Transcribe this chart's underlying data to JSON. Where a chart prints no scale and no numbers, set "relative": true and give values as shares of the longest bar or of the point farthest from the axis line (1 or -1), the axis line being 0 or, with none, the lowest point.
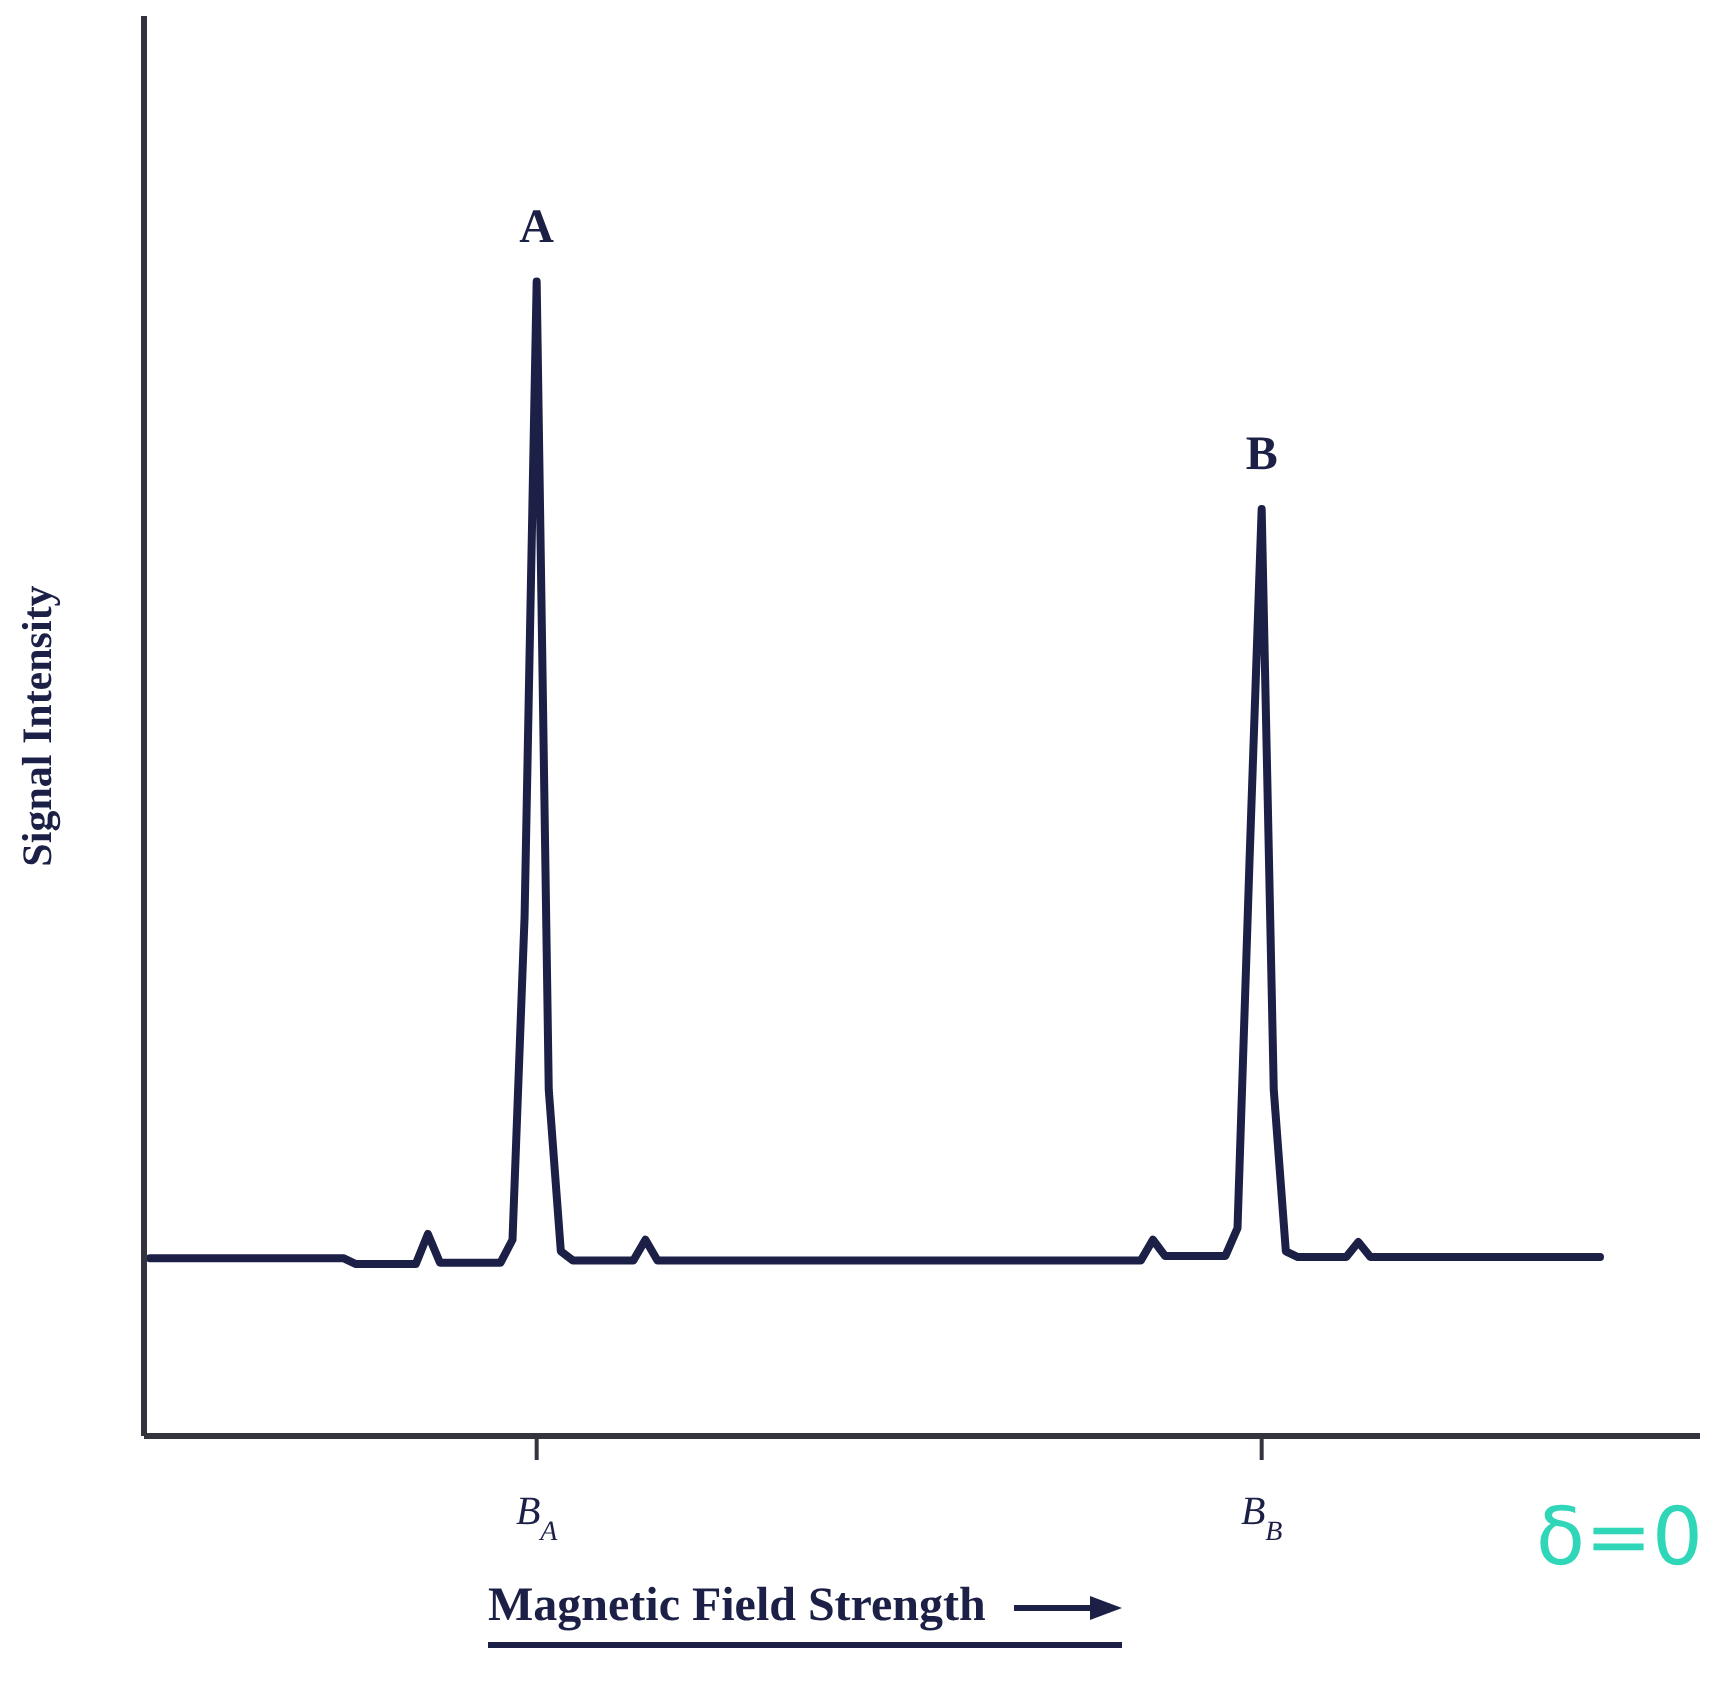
{
  "chart_data": {
    "type": "line",
    "relative": true,
    "xlabel": "Magnetic Field Strength",
    "ylabel": "Signal Intensity",
    "categories": [
      null,
      null,
      null,
      null,
      null,
      null,
      null,
      null,
      null,
      null,
      null,
      null,
      null,
      null,
      null,
      null,
      null,
      null,
      null,
      null,
      null,
      null,
      null,
      null,
      null,
      null,
      null,
      null,
      null,
      null,
      null,
      null,
      "B$_{A}$",
      null,
      null,
      null,
      null,
      null,
      null,
      null,
      null,
      null,
      null,
      null,
      null,
      null,
      null,
      null,
      null,
      null,
      null,
      null,
      null,
      null,
      null,
      null,
      null,
      null,
      null,
      null,
      null,
      null,
      null,
      null,
      null,
      null,
      null,
      null,
      null,
      null,
      null,
      null,
      null,
      null,
      null,
      null,
      null,
      null,
      null,
      null,
      null,
      null,
      null,
      null,
      null,
      null,
      null,
      null,
      null,
      null,
      null,
      null,
      "B$_{B}$",
      null,
      null,
      null,
      null,
      null,
      null,
      null,
      null,
      null,
      null,
      null,
      null,
      null,
      null,
      null,
      null,
      null,
      null,
      null,
      null,
      null,
      null,
      null,
      null,
      null,
      null,
      null,
      null
    ],
    "series": [
      {
        "color": "#1c2046",
        "values": [
          0.154,
          0.154,
          0.154,
          0.154,
          0.154,
          0.154,
          0.154,
          0.154,
          0.154,
          0.154,
          0.154,
          0.154,
          0.154,
          0.154,
          0.154,
          0.154,
          0.154,
          0.149,
          0.149,
          0.149,
          0.149,
          0.149,
          0.149,
          0.175,
          0.15,
          0.15,
          0.15,
          0.15,
          0.15,
          0.15,
          0.17,
          0.45,
          1,
          0.3,
          0.16,
          0.152,
          0.152,
          0.152,
          0.152,
          0.152,
          0.152,
          0.17,
          0.152,
          0.152,
          0.152,
          0.152,
          0.152,
          0.152,
          0.152,
          0.152,
          0.152,
          0.152,
          0.152,
          0.152,
          0.152,
          0.152,
          0.152,
          0.152,
          0.152,
          0.152,
          0.152,
          0.152,
          0.152,
          0.152,
          0.152,
          0.152,
          0.152,
          0.152,
          0.152,
          0.152,
          0.152,
          0.152,
          0.152,
          0.152,
          0.152,
          0.152,
          0.152,
          0.152,
          0.152,
          0.152,
          0.152,
          0.152,
          0.152,
          0.17,
          0.156,
          0.156,
          0.156,
          0.156,
          0.156,
          0.156,
          0.18,
          0.5,
          0.803,
          0.3,
          0.16,
          0.155,
          0.155,
          0.155,
          0.155,
          0.155,
          0.168,
          0.155,
          0.155,
          0.155,
          0.155,
          0.155,
          0.155,
          0.155,
          0.155,
          0.155,
          0.155,
          0.155,
          0.155,
          0.155,
          0.155,
          0.155,
          0.155,
          0.155,
          0.155,
          0.155,
          0.155
        ]
      }
    ],
    "annotations": [
      {
        "text": "A",
        "x": "B$_{A}$",
        "y": 1
      },
      {
        "text": "B",
        "x": "B$_{B}$",
        "y": 0.803
      },
      "δ=0"
    ],
    "grid": false,
    "legend": false,
    "marker": "none",
    "line_style": "solid"
  }
}
